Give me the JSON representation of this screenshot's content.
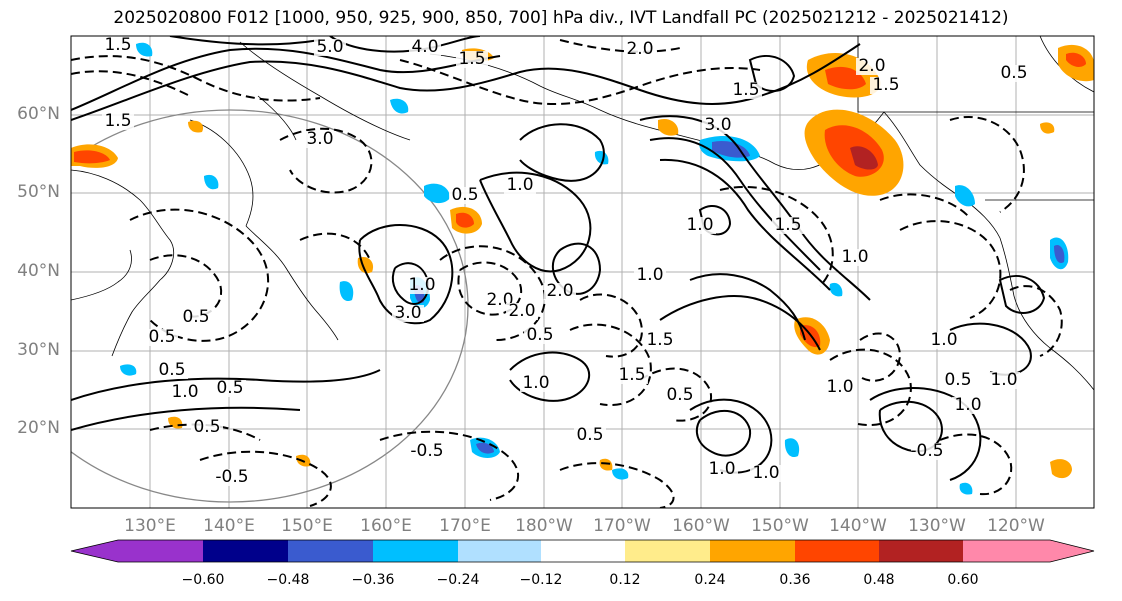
{
  "title": "2025020800 F012 [1000, 950, 925, 900, 850, 700] hPa div., IVT Landfall PC (2025021212 - 2025021412)",
  "lat_labels": [
    "60°N",
    "50°N",
    "40°N",
    "30°N",
    "20°N"
  ],
  "lon_labels": [
    "130°E",
    "140°E",
    "150°E",
    "160°E",
    "170°E",
    "180°W",
    "170°W",
    "160°W",
    "150°W",
    "140°W",
    "130°W",
    "120°W"
  ],
  "colorbar": {
    "ticks": [
      "−0.60",
      "−0.48",
      "−0.36",
      "−0.24",
      "−0.12",
      "0.12",
      "0.24",
      "0.36",
      "0.48",
      "0.60"
    ],
    "colors": [
      "#9932cc",
      "#00008b",
      "#3a5bcf",
      "#00bfff",
      "#b0e0ff",
      "#ffffff",
      "#ffec8b",
      "#ffa500",
      "#ff4500",
      "#b22222",
      "#ff88aa"
    ]
  },
  "contour_labels": [
    {
      "text": "5.0"
    },
    {
      "text": "4.0"
    },
    {
      "text": "1.5"
    },
    {
      "text": "2.0"
    },
    {
      "text": "1.5"
    },
    {
      "text": "3.0"
    },
    {
      "text": "1.5"
    },
    {
      "text": "3.0"
    },
    {
      "text": "1.5"
    },
    {
      "text": "0.5"
    },
    {
      "text": "1.0"
    },
    {
      "text": "1.5"
    },
    {
      "text": "2.0"
    },
    {
      "text": "3.0"
    },
    {
      "text": "1.0"
    },
    {
      "text": "0.5"
    },
    {
      "text": "1.0"
    },
    {
      "text": "2.0"
    },
    {
      "text": "2.0"
    },
    {
      "text": "1.0"
    },
    {
      "text": "0.5"
    },
    {
      "text": "1.0"
    },
    {
      "text": "1.5"
    },
    {
      "text": "0.5"
    },
    {
      "text": "0.5"
    },
    {
      "text": "1.0"
    },
    {
      "text": "1.5"
    },
    {
      "text": "1.0"
    },
    {
      "text": "1.0"
    },
    {
      "text": "0.5"
    },
    {
      "text": "1.0"
    },
    {
      "text": "0.5"
    },
    {
      "text": "0.5"
    },
    {
      "text": "1.0"
    },
    {
      "text": "2.0"
    },
    {
      "text": "-0.5"
    },
    {
      "text": "-0.5"
    },
    {
      "text": "0.5"
    },
    {
      "text": "1.5"
    },
    {
      "text": "1.0"
    },
    {
      "text": "0.5"
    },
    {
      "text": "1.0"
    },
    {
      "text": "0.5"
    },
    {
      "text": "-0.5"
    },
    {
      "text": "1.0"
    }
  ]
}
